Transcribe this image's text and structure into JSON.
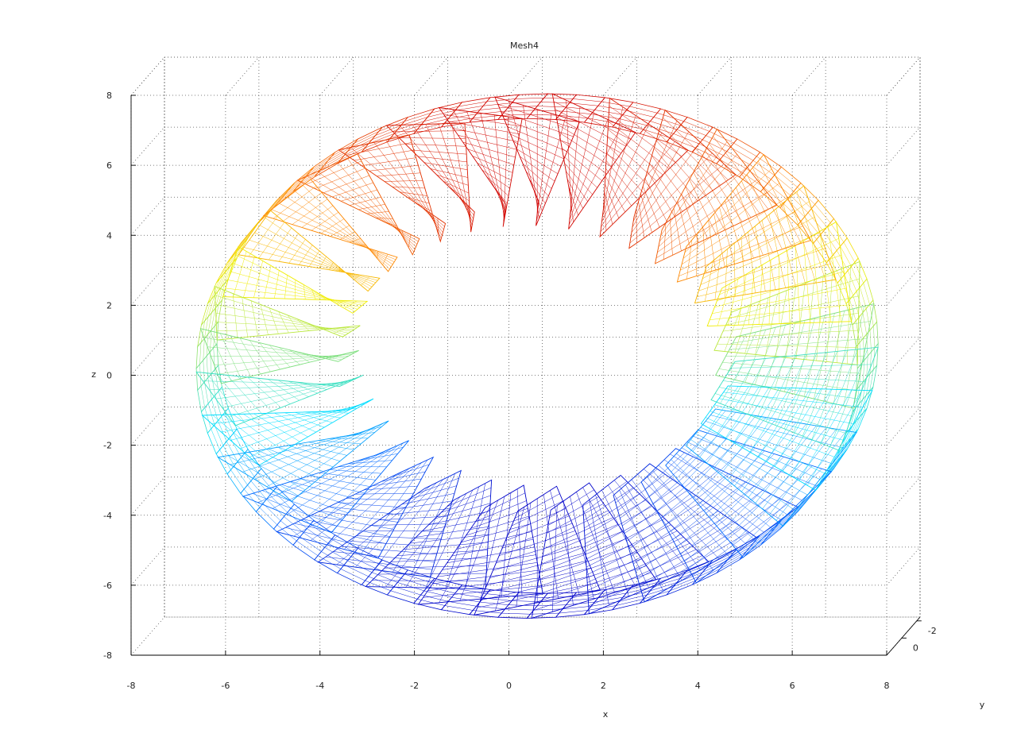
{
  "chart_data": {
    "type": "mesh",
    "title": "Mesh4",
    "xlabel": "x",
    "ylabel": "y",
    "zlabel": "z",
    "x_ticks": [
      "-8",
      "-6",
      "-4",
      "-2",
      "0",
      "2",
      "4",
      "6",
      "8"
    ],
    "z_ticks": [
      "8",
      "6",
      "4",
      "2",
      "0",
      "-2",
      "-4",
      "-6",
      "-8"
    ],
    "y_ticks": [
      "-2",
      "0"
    ],
    "xlim": [
      -8,
      8
    ],
    "zlim": [
      -8,
      8
    ],
    "ylim": [
      -2,
      2
    ],
    "grid": true,
    "colormap": "jet",
    "colormap_stops": [
      "#0000c8",
      "#0060ff",
      "#00e0ff",
      "#80e080",
      "#f0f000",
      "#ff8000",
      "#d00000"
    ],
    "ring": {
      "outer_radius_x": 7.0,
      "outer_radius_z": 7.0,
      "blade_count": 36,
      "blade_inner_radius": 4.0
    }
  }
}
